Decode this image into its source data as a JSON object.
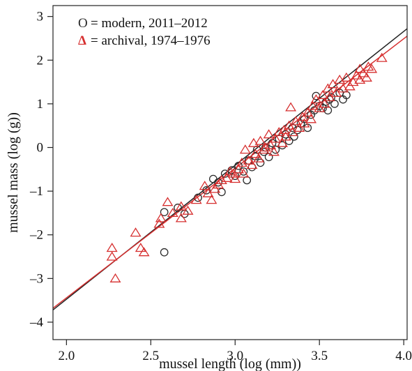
{
  "chart_data": {
    "type": "scatter",
    "xlabel": "mussel length (log (mm))",
    "ylabel": "mussel mass (log (g))",
    "xlim": [
      1.92,
      4.02
    ],
    "ylim": [
      -4.4,
      3.25
    ],
    "xticks": [
      2.0,
      2.5,
      3.0,
      3.5,
      4.0
    ],
    "xtick_labels": [
      "2.0",
      "2.5",
      "3.0",
      "3.5",
      "4.0"
    ],
    "yticks": [
      -4,
      -3,
      -2,
      -1,
      0,
      1,
      2,
      3
    ],
    "ytick_labels": [
      "–4",
      "–3",
      "–2",
      "–1",
      "0",
      "1",
      "2",
      "3"
    ],
    "grid": false,
    "legend_position": "top-left",
    "colors": {
      "modern": "#2b2b2b",
      "archival": "#d62f2f"
    },
    "series": [
      {
        "name": "modern, 2011–2012",
        "legend_label": "= modern, 2011–2012",
        "legend_symbol": "O",
        "marker": "circle",
        "color": "#2b2b2b",
        "points": [
          [
            2.58,
            -1.48
          ],
          [
            2.58,
            -2.4
          ],
          [
            2.66,
            -1.38
          ],
          [
            2.7,
            -1.52
          ],
          [
            2.78,
            -1.15
          ],
          [
            2.83,
            -0.98
          ],
          [
            2.87,
            -0.72
          ],
          [
            2.9,
            -0.8
          ],
          [
            2.92,
            -1.02
          ],
          [
            2.94,
            -0.6
          ],
          [
            2.98,
            -0.52
          ],
          [
            3.0,
            -0.65
          ],
          [
            3.02,
            -0.42
          ],
          [
            3.05,
            -0.55
          ],
          [
            3.07,
            -0.75
          ],
          [
            3.08,
            -0.3
          ],
          [
            3.1,
            -0.45
          ],
          [
            3.12,
            -0.2
          ],
          [
            3.13,
            -0.05
          ],
          [
            3.15,
            -0.35
          ],
          [
            3.17,
            -0.1
          ],
          [
            3.18,
            0.0
          ],
          [
            3.2,
            -0.22
          ],
          [
            3.22,
            0.1
          ],
          [
            3.24,
            -0.05
          ],
          [
            3.26,
            0.2
          ],
          [
            3.28,
            0.05
          ],
          [
            3.3,
            0.3
          ],
          [
            3.32,
            0.15
          ],
          [
            3.34,
            0.45
          ],
          [
            3.35,
            0.25
          ],
          [
            3.37,
            0.4
          ],
          [
            3.39,
            0.55
          ],
          [
            3.41,
            0.65
          ],
          [
            3.43,
            0.45
          ],
          [
            3.45,
            0.75
          ],
          [
            3.47,
            0.85
          ],
          [
            3.48,
            1.18
          ],
          [
            3.5,
            0.95
          ],
          [
            3.52,
            0.9
          ],
          [
            3.54,
            1.05
          ],
          [
            3.55,
            0.85
          ],
          [
            3.57,
            1.15
          ],
          [
            3.59,
            1.0
          ],
          [
            3.62,
            1.25
          ],
          [
            3.64,
            1.1
          ],
          [
            3.66,
            1.2
          ],
          [
            3.56,
            1.1
          ]
        ]
      },
      {
        "name": "archival, 1974–1976",
        "legend_label": "= archival, 1974–1976",
        "legend_symbol": "Δ",
        "marker": "triangle",
        "color": "#d62f2f",
        "points": [
          [
            2.27,
            -2.3
          ],
          [
            2.27,
            -2.5
          ],
          [
            2.29,
            -3.0
          ],
          [
            2.41,
            -1.95
          ],
          [
            2.44,
            -2.3
          ],
          [
            2.46,
            -2.4
          ],
          [
            2.55,
            -1.75
          ],
          [
            2.56,
            -1.62
          ],
          [
            2.6,
            -1.25
          ],
          [
            2.63,
            -1.5
          ],
          [
            2.68,
            -1.35
          ],
          [
            2.68,
            -1.62
          ],
          [
            2.72,
            -1.45
          ],
          [
            2.77,
            -1.2
          ],
          [
            2.82,
            -0.88
          ],
          [
            2.84,
            -1.05
          ],
          [
            2.86,
            -1.2
          ],
          [
            2.88,
            -0.95
          ],
          [
            2.9,
            -0.85
          ],
          [
            2.92,
            -0.75
          ],
          [
            2.95,
            -0.7
          ],
          [
            2.97,
            -0.55
          ],
          [
            2.99,
            -0.6
          ],
          [
            3.0,
            -0.72
          ],
          [
            3.02,
            -0.5
          ],
          [
            3.04,
            -0.35
          ],
          [
            3.05,
            -0.6
          ],
          [
            3.06,
            -0.05
          ],
          [
            3.08,
            -0.3
          ],
          [
            3.1,
            -0.4
          ],
          [
            3.11,
            0.1
          ],
          [
            3.12,
            -0.15
          ],
          [
            3.14,
            -0.25
          ],
          [
            3.15,
            0.15
          ],
          [
            3.17,
            -0.05
          ],
          [
            3.18,
            0.0
          ],
          [
            3.2,
            0.3
          ],
          [
            3.21,
            0.05
          ],
          [
            3.23,
            -0.1
          ],
          [
            3.24,
            0.2
          ],
          [
            3.26,
            0.35
          ],
          [
            3.28,
            0.1
          ],
          [
            3.29,
            0.4
          ],
          [
            3.3,
            0.25
          ],
          [
            3.32,
            0.5
          ],
          [
            3.33,
            0.92
          ],
          [
            3.34,
            0.35
          ],
          [
            3.36,
            0.6
          ],
          [
            3.38,
            0.45
          ],
          [
            3.4,
            0.7
          ],
          [
            3.41,
            0.55
          ],
          [
            3.43,
            0.8
          ],
          [
            3.45,
            0.65
          ],
          [
            3.46,
            0.95
          ],
          [
            3.48,
            1.1
          ],
          [
            3.5,
            0.9
          ],
          [
            3.52,
            1.2
          ],
          [
            3.53,
            1.0
          ],
          [
            3.55,
            1.35
          ],
          [
            3.56,
            1.15
          ],
          [
            3.58,
            1.45
          ],
          [
            3.6,
            1.25
          ],
          [
            3.62,
            1.55
          ],
          [
            3.64,
            1.35
          ],
          [
            3.66,
            1.6
          ],
          [
            3.68,
            1.4
          ],
          [
            3.7,
            1.5
          ],
          [
            3.72,
            1.65
          ],
          [
            3.74,
            1.55
          ],
          [
            3.76,
            1.7
          ],
          [
            3.78,
            1.6
          ],
          [
            3.79,
            1.85
          ],
          [
            3.81,
            1.8
          ],
          [
            3.87,
            2.05
          ],
          [
            3.74,
            1.8
          ]
        ]
      }
    ],
    "fit_lines": [
      {
        "series": "modern, 2011–2012",
        "color": "#222222",
        "x": [
          1.92,
          4.02
        ],
        "y": [
          -3.72,
          2.72
        ]
      },
      {
        "series": "archival, 1974–1976",
        "color": "#d62f2f",
        "x": [
          1.92,
          4.02
        ],
        "y": [
          -3.68,
          2.55
        ]
      }
    ]
  }
}
